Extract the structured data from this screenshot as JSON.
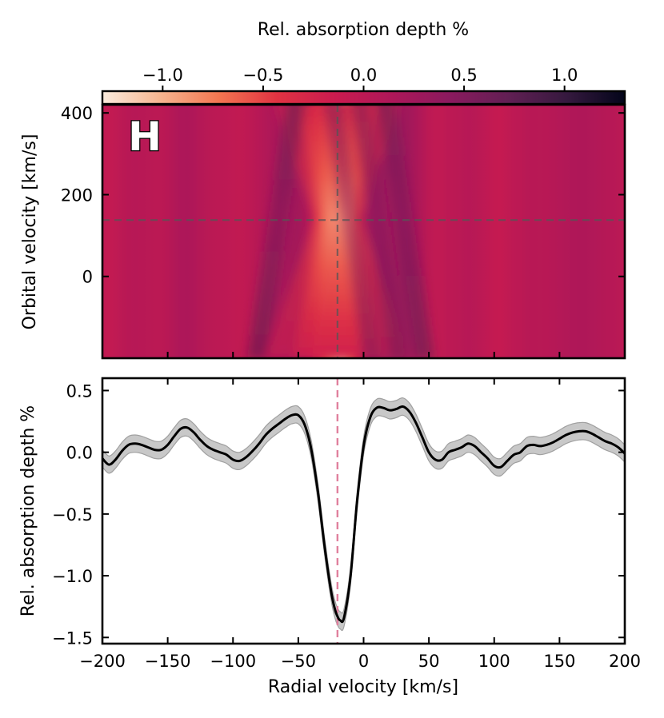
{
  "chart_data": [
    {
      "type": "heatmap",
      "colorbar_label": "Rel. absorption depth %",
      "colorbar_ticks": [
        -1.0,
        -0.5,
        0.0,
        0.5,
        1.0
      ],
      "colorbar_tick_labels": [
        "−1.0",
        "−0.5",
        "0.0",
        "0.5",
        "1.0"
      ],
      "colorbar_range": [
        -1.3,
        1.3
      ],
      "colormap": "rocket",
      "colormap_stops": [
        "#faebdd",
        "#f6b48f",
        "#f37651",
        "#e13342",
        "#cb1b4f",
        "#ad1759",
        "#8a1a5e",
        "#611f53",
        "#35193e",
        "#03051a"
      ],
      "panel_label": "H",
      "ylabel": "Orbital velocity [km/s]",
      "xlim": [
        -200,
        200
      ],
      "ylim": [
        -200,
        420
      ],
      "yticks": [
        0,
        200,
        400
      ],
      "xticks": [
        -200,
        -150,
        -100,
        -50,
        0,
        50,
        100,
        150,
        200
      ],
      "marker_rv": -20,
      "marker_kp": 138,
      "marker_line_color": "#555555"
    },
    {
      "type": "line",
      "xlabel": "Radial velocity [km/s]",
      "ylabel": "Rel. absorption depth %",
      "xlim": [
        -200,
        200
      ],
      "ylim": [
        -1.55,
        0.6
      ],
      "xticks": [
        -200,
        -150,
        -100,
        -50,
        0,
        50,
        100,
        150,
        200
      ],
      "xtick_labels": [
        "−200",
        "−150",
        "−100",
        "−50",
        "0",
        "50",
        "100",
        "150",
        "200"
      ],
      "yticks": [
        -1.5,
        -1.0,
        -0.5,
        0.0,
        0.5
      ],
      "ytick_labels": [
        "−1.5",
        "−1.0",
        "−0.5",
        "0.0",
        "0.5"
      ],
      "vline_x": -20,
      "vline_color": "#e0809e",
      "line_color": "#000000",
      "band_color": "#c8c8c8",
      "band_edge_color": "#a0a0a0",
      "x": [
        -200,
        -195,
        -190,
        -185,
        -180,
        -175,
        -170,
        -165,
        -160,
        -155,
        -150,
        -145,
        -140,
        -135,
        -130,
        -125,
        -120,
        -115,
        -110,
        -105,
        -100,
        -95,
        -90,
        -85,
        -80,
        -75,
        -70,
        -65,
        -60,
        -55,
        -50,
        -45,
        -40,
        -35,
        -30,
        -25,
        -22,
        -20,
        -18,
        -15,
        -10,
        -5,
        0,
        5,
        10,
        15,
        20,
        25,
        30,
        35,
        40,
        45,
        50,
        55,
        60,
        65,
        70,
        75,
        80,
        85,
        90,
        95,
        100,
        105,
        110,
        115,
        120,
        125,
        130,
        135,
        140,
        145,
        150,
        155,
        160,
        165,
        170,
        175,
        180,
        185,
        190,
        195,
        200
      ],
      "y": [
        -0.05,
        -0.1,
        -0.06,
        0.01,
        0.06,
        0.07,
        0.06,
        0.04,
        0.02,
        0.02,
        0.06,
        0.13,
        0.19,
        0.2,
        0.16,
        0.1,
        0.05,
        0.02,
        0.0,
        -0.02,
        -0.06,
        -0.07,
        -0.04,
        0.01,
        0.07,
        0.14,
        0.19,
        0.23,
        0.27,
        0.3,
        0.3,
        0.22,
        0.02,
        -0.32,
        -0.75,
        -1.12,
        -1.27,
        -1.33,
        -1.36,
        -1.34,
        -1.0,
        -0.4,
        0.05,
        0.28,
        0.36,
        0.36,
        0.34,
        0.35,
        0.37,
        0.33,
        0.24,
        0.12,
        0.0,
        -0.06,
        -0.06,
        0.0,
        0.02,
        0.04,
        0.07,
        0.05,
        0.0,
        -0.05,
        -0.11,
        -0.12,
        -0.07,
        -0.02,
        0.0,
        0.05,
        0.06,
        0.05,
        0.06,
        0.08,
        0.11,
        0.14,
        0.16,
        0.17,
        0.17,
        0.15,
        0.12,
        0.09,
        0.07,
        0.04,
        -0.01
      ],
      "band_half_width": 0.07
    }
  ]
}
